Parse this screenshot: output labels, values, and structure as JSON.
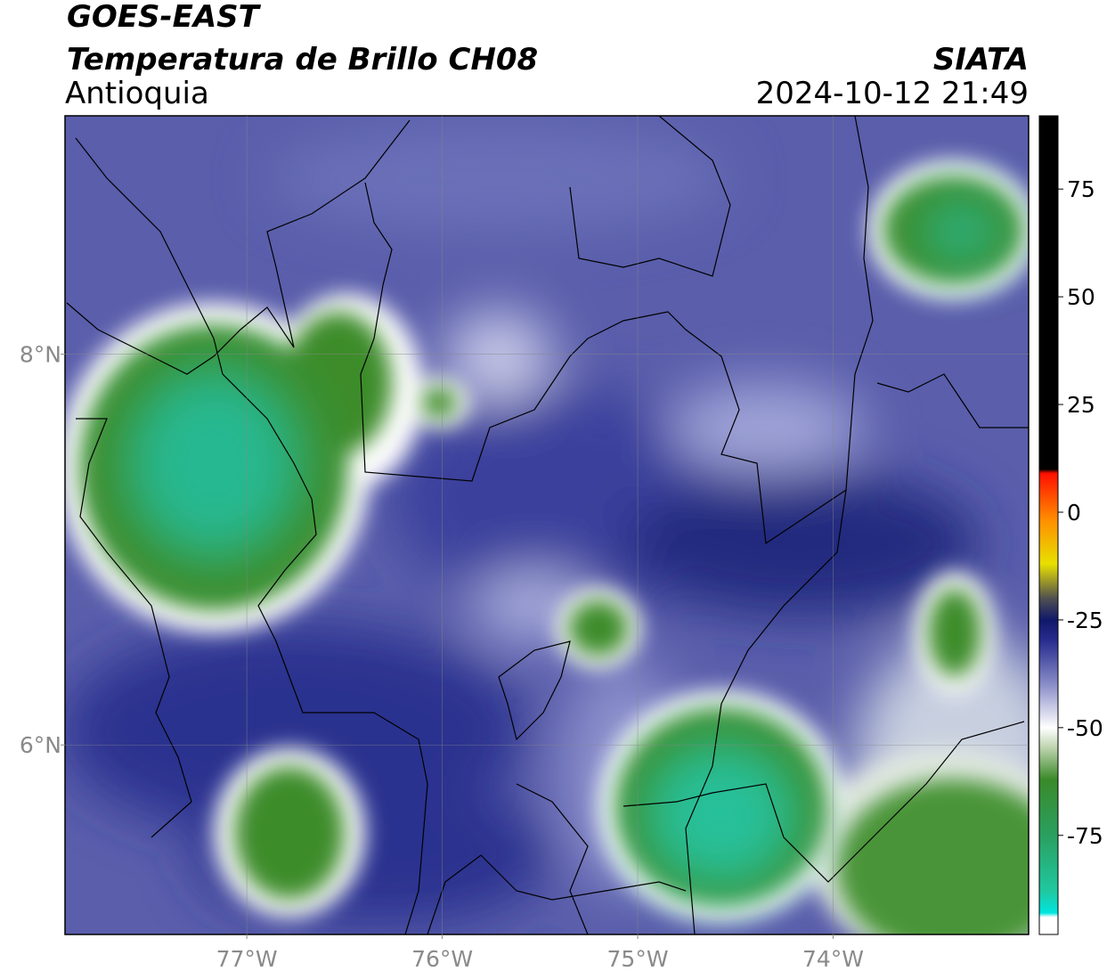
{
  "header": {
    "source": "GOES-EAST",
    "product": "Temperatura de Brillo CH08",
    "region": "Antioquia",
    "agency": "SIATA",
    "datetime": "2024-10-12 21:49"
  },
  "map": {
    "xlim": [
      -77.93,
      -73.0
    ],
    "ylim": [
      5.03,
      9.22
    ],
    "xticks": [
      {
        "value": -77,
        "label": "77°W"
      },
      {
        "value": -76,
        "label": "76°W"
      },
      {
        "value": -75,
        "label": "75°W"
      },
      {
        "value": -74,
        "label": "74°W"
      }
    ],
    "yticks": [
      {
        "value": 6,
        "label": "6°N"
      },
      {
        "value": 8,
        "label": "8°N"
      }
    ],
    "grid": true
  },
  "colorbar": {
    "clim": [
      -98,
      92
    ],
    "ticks": [
      75,
      50,
      25,
      0,
      -25,
      -50,
      -75
    ],
    "colormap": [
      {
        "value": -98,
        "color": "#ffffff"
      },
      {
        "value": -94,
        "color": "#ffffff"
      },
      {
        "value": -93,
        "color": "#00e5e0"
      },
      {
        "value": -88,
        "color": "#20c8a0"
      },
      {
        "value": -75,
        "color": "#2aa060"
      },
      {
        "value": -62,
        "color": "#3a8a2a"
      },
      {
        "value": -55,
        "color": "#b8d0a8"
      },
      {
        "value": -50,
        "color": "#ffffff"
      },
      {
        "value": -40,
        "color": "#8a8ec8"
      },
      {
        "value": -30,
        "color": "#2a2e90"
      },
      {
        "value": -25,
        "color": "#10186a"
      },
      {
        "value": -20,
        "color": "#505050"
      },
      {
        "value": -12,
        "color": "#e8e000"
      },
      {
        "value": -2,
        "color": "#ff9000"
      },
      {
        "value": 9,
        "color": "#ff1000"
      },
      {
        "value": 10,
        "color": "#000000"
      },
      {
        "value": 92,
        "color": "#000000"
      }
    ]
  }
}
